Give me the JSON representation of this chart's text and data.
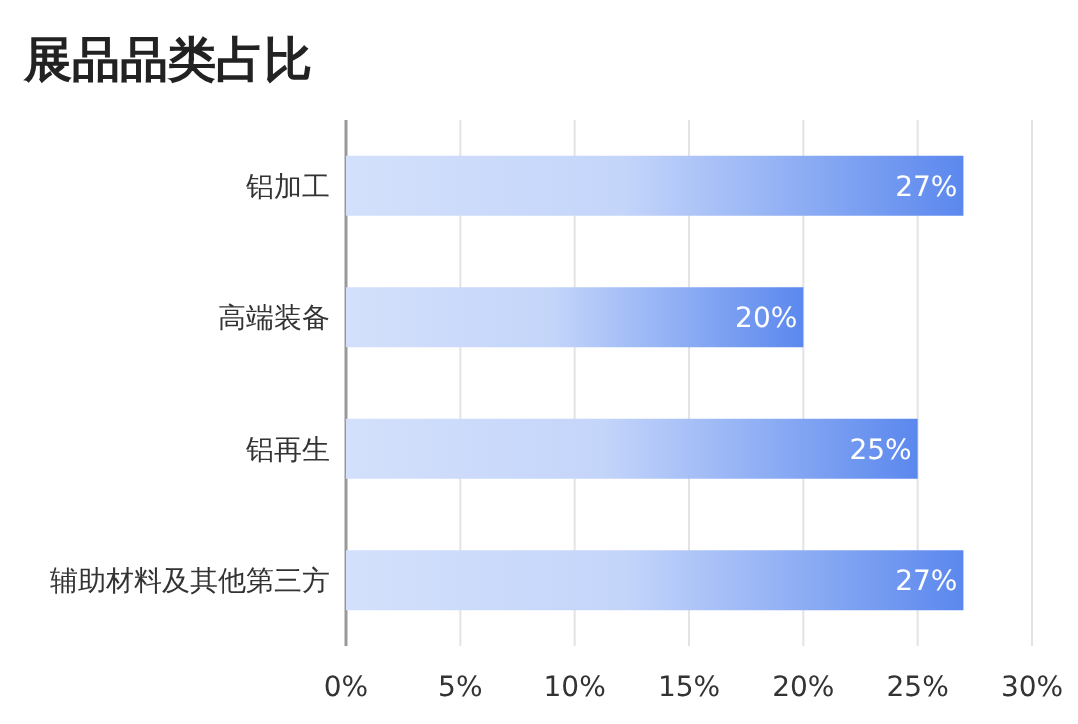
{
  "chart_data": {
    "type": "bar",
    "orientation": "horizontal",
    "title": "展品品类占比",
    "categories": [
      "铝加工",
      "高端装备",
      "铝再生",
      "辅助材料及其他第三方"
    ],
    "values": [
      27,
      20,
      25,
      27
    ],
    "value_labels": [
      "27%",
      "20%",
      "25%",
      "27%"
    ],
    "color": "#5b88ee",
    "xlim": [
      0,
      30
    ],
    "xticks": [
      {
        "value": 0,
        "label": "0%"
      },
      {
        "value": 5,
        "label": "5%"
      },
      {
        "value": 10,
        "label": "10%"
      },
      {
        "value": 15,
        "label": "15%"
      },
      {
        "value": 20,
        "label": "20%"
      },
      {
        "value": 25,
        "label": "25%"
      },
      {
        "value": 30,
        "label": "30%"
      }
    ],
    "grid": "x"
  }
}
